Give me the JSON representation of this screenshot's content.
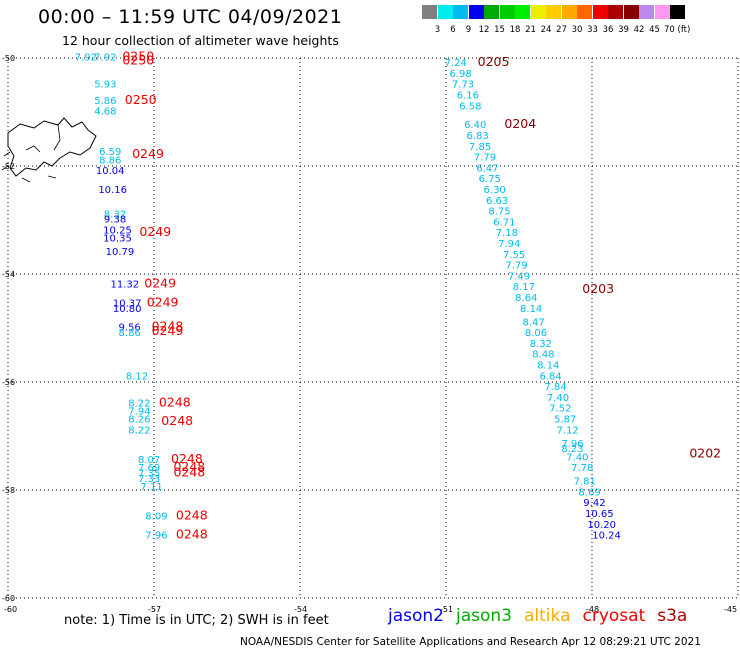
{
  "title": "00:00 – 11:59 UTC 04/09/2021",
  "subtitle": "12 hour collection of altimeter wave heights",
  "colorbar": {
    "labels": [
      "3",
      "6",
      "9",
      "12",
      "15",
      "18",
      "21",
      "24",
      "27",
      "30",
      "33",
      "36",
      "39",
      "42",
      "45",
      "70 (ft)"
    ],
    "colors": [
      "#808080",
      "#00eeee",
      "#00bbee",
      "#0000ee",
      "#00aa00",
      "#00cc00",
      "#00ee00",
      "#eeee00",
      "#ffcc00",
      "#ffaa00",
      "#ff6600",
      "#ee0000",
      "#aa0000",
      "#880000",
      "#bb88ee",
      "#ff99ee",
      "#000000"
    ]
  },
  "colors": {
    "swh_low": "#00bbee",
    "swh_mid": "#0000ee",
    "time_red": "#ee0000",
    "time_dark": "#880000"
  },
  "axes": {
    "lat_labels": [
      "-50",
      "-52",
      "-54",
      "-56",
      "-58",
      "-60"
    ],
    "lon_labels": [
      "-60",
      "-57",
      "-54",
      "-51",
      "-48",
      "-45"
    ]
  },
  "chart_data": {
    "type": "scatter",
    "x_axis": "longitude",
    "y_axis": "latitude",
    "xlim": [
      -60,
      -45
    ],
    "ylim": [
      -60,
      -50
    ],
    "units": "ft",
    "tracks": [
      {
        "color": "jason2",
        "points": [
          {
            "lon": -58.4,
            "lat": -50.05,
            "swh": "7.92"
          },
          {
            "lon": -58.0,
            "lat": -50.05,
            "swh": "7.92"
          },
          {
            "lon": -58.0,
            "lat": -50.55,
            "swh": "5.93"
          },
          {
            "lon": -58.0,
            "lat": -50.85,
            "swh": "5.86"
          },
          {
            "lon": -58.0,
            "lat": -51.05,
            "swh": "4.68"
          },
          {
            "lon": -57.9,
            "lat": -51.8,
            "swh": "6.59"
          },
          {
            "lon": -57.9,
            "lat": -51.95,
            "swh": "8.86"
          },
          {
            "lon": -57.9,
            "lat": -52.15,
            "swh": "10.04"
          },
          {
            "lon": -57.85,
            "lat": -52.5,
            "swh": "10.16"
          },
          {
            "lon": -57.8,
            "lat": -52.95,
            "swh": "8.32"
          },
          {
            "lon": -57.8,
            "lat": -53.05,
            "swh": "9.38"
          },
          {
            "lon": -57.75,
            "lat": -53.25,
            "swh": "10.25"
          },
          {
            "lon": -57.75,
            "lat": -53.4,
            "swh": "10.35"
          },
          {
            "lon": -57.7,
            "lat": -53.65,
            "swh": "10.79"
          },
          {
            "lon": -57.6,
            "lat": -54.25,
            "swh": "11.32"
          },
          {
            "lon": -57.55,
            "lat": -54.6,
            "swh": "10.37"
          },
          {
            "lon": -57.55,
            "lat": -54.7,
            "swh": "10.80"
          },
          {
            "lon": -57.5,
            "lat": -55.05,
            "swh": "9.56"
          },
          {
            "lon": -57.5,
            "lat": -55.15,
            "swh": "8.86"
          },
          {
            "lon": -57.35,
            "lat": -55.95,
            "swh": "8.12"
          },
          {
            "lon": -57.3,
            "lat": -56.45,
            "swh": "8.22"
          },
          {
            "lon": -57.3,
            "lat": -56.6,
            "swh": "7.94"
          },
          {
            "lon": -57.3,
            "lat": -56.75,
            "swh": "8.26"
          },
          {
            "lon": -57.3,
            "lat": -56.95,
            "swh": "8.22"
          },
          {
            "lon": -57.1,
            "lat": -57.5,
            "swh": "8.07"
          },
          {
            "lon": -57.1,
            "lat": -57.65,
            "swh": "7.69"
          },
          {
            "lon": -57.1,
            "lat": -57.75,
            "swh": "7.35"
          },
          {
            "lon": -57.1,
            "lat": -57.85,
            "swh": "7.33"
          },
          {
            "lon": -57.05,
            "lat": -58.0,
            "swh": "7.11"
          },
          {
            "lon": -56.95,
            "lat": -58.55,
            "swh": "8.09"
          },
          {
            "lon": -56.95,
            "lat": -58.9,
            "swh": "7.96"
          }
        ]
      },
      {
        "color": "jason2-east",
        "points": [
          {
            "lon": -50.8,
            "lat": -50.15,
            "swh": "7.24"
          },
          {
            "lon": -50.7,
            "lat": -50.35,
            "swh": "6.98"
          },
          {
            "lon": -50.65,
            "lat": -50.55,
            "swh": "7.73"
          },
          {
            "lon": -50.55,
            "lat": -50.75,
            "swh": "6.16"
          },
          {
            "lon": -50.5,
            "lat": -50.95,
            "swh": "6.58"
          },
          {
            "lon": -50.4,
            "lat": -51.3,
            "swh": "6.40"
          },
          {
            "lon": -50.35,
            "lat": -51.5,
            "swh": "6.83"
          },
          {
            "lon": -50.3,
            "lat": -51.7,
            "swh": "7.85"
          },
          {
            "lon": -50.2,
            "lat": -51.9,
            "swh": "7.79"
          },
          {
            "lon": -50.15,
            "lat": -52.1,
            "swh": "6.47"
          },
          {
            "lon": -50.1,
            "lat": -52.3,
            "swh": "6.75"
          },
          {
            "lon": -50.0,
            "lat": -52.5,
            "swh": "6.30"
          },
          {
            "lon": -49.95,
            "lat": -52.7,
            "swh": "6.63"
          },
          {
            "lon": -49.9,
            "lat": -52.9,
            "swh": "8.75"
          },
          {
            "lon": -49.8,
            "lat": -53.1,
            "swh": "6.71"
          },
          {
            "lon": -49.75,
            "lat": -53.3,
            "swh": "7.18"
          },
          {
            "lon": -49.7,
            "lat": -53.5,
            "swh": "7.94"
          },
          {
            "lon": -49.6,
            "lat": -53.7,
            "swh": "7.55"
          },
          {
            "lon": -49.55,
            "lat": -53.9,
            "swh": "7.79"
          },
          {
            "lon": -49.5,
            "lat": -54.1,
            "swh": "7.49"
          },
          {
            "lon": -49.4,
            "lat": -54.3,
            "swh": "8.17"
          },
          {
            "lon": -49.35,
            "lat": -54.5,
            "swh": "8.64"
          },
          {
            "lon": -49.25,
            "lat": -54.7,
            "swh": "8.14"
          },
          {
            "lon": -49.2,
            "lat": -54.95,
            "swh": "8.47"
          },
          {
            "lon": -49.15,
            "lat": -55.15,
            "swh": "8.06"
          },
          {
            "lon": -49.05,
            "lat": -55.35,
            "swh": "8.32"
          },
          {
            "lon": -49.0,
            "lat": -55.55,
            "swh": "8.48"
          },
          {
            "lon": -48.9,
            "lat": -55.75,
            "swh": "8.14"
          },
          {
            "lon": -48.85,
            "lat": -55.95,
            "swh": "6.84"
          },
          {
            "lon": -48.75,
            "lat": -56.15,
            "swh": "7.84"
          },
          {
            "lon": -48.7,
            "lat": -56.35,
            "swh": "7.40"
          },
          {
            "lon": -48.65,
            "lat": -56.55,
            "swh": "7.52"
          },
          {
            "lon": -48.55,
            "lat": -56.75,
            "swh": "5.87"
          },
          {
            "lon": -48.5,
            "lat": -56.95,
            "swh": "7.12"
          },
          {
            "lon": -48.4,
            "lat": -57.2,
            "swh": "7.96"
          },
          {
            "lon": -48.4,
            "lat": -57.3,
            "swh": "8.23"
          },
          {
            "lon": -48.3,
            "lat": -57.45,
            "swh": "7.40"
          },
          {
            "lon": -48.2,
            "lat": -57.65,
            "swh": "7.78"
          },
          {
            "lon": -48.15,
            "lat": -57.9,
            "swh": "7.81"
          },
          {
            "lon": -48.05,
            "lat": -58.1,
            "swh": "8.69"
          },
          {
            "lon": -47.95,
            "lat": -58.3,
            "swh": "9.42"
          },
          {
            "lon": -47.85,
            "lat": -58.5,
            "swh": "10.65"
          },
          {
            "lon": -47.8,
            "lat": -58.7,
            "swh": "10.20"
          },
          {
            "lon": -47.7,
            "lat": -58.9,
            "swh": "10.24"
          }
        ]
      }
    ],
    "time_labels": [
      {
        "lon": -57.65,
        "lat": -50.05,
        "text": "0250",
        "tone": "red"
      },
      {
        "lon": -57.65,
        "lat": -50.12,
        "text": "0250",
        "tone": "red"
      },
      {
        "lon": -57.6,
        "lat": -50.85,
        "text": "0250",
        "tone": "red"
      },
      {
        "lon": -57.45,
        "lat": -51.85,
        "text": "0249",
        "tone": "red"
      },
      {
        "lon": -57.3,
        "lat": -53.3,
        "text": "0249",
        "tone": "red"
      },
      {
        "lon": -57.2,
        "lat": -54.25,
        "text": "0249",
        "tone": "red"
      },
      {
        "lon": -57.15,
        "lat": -54.6,
        "text": "0249",
        "tone": "red"
      },
      {
        "lon": -57.05,
        "lat": -55.05,
        "text": "0248",
        "tone": "red"
      },
      {
        "lon": -57.05,
        "lat": -55.13,
        "text": "0249",
        "tone": "red"
      },
      {
        "lon": -56.9,
        "lat": -56.45,
        "text": "0248",
        "tone": "red"
      },
      {
        "lon": -56.85,
        "lat": -56.8,
        "text": "0248",
        "tone": "red"
      },
      {
        "lon": -56.65,
        "lat": -57.5,
        "text": "0248",
        "tone": "red"
      },
      {
        "lon": -56.6,
        "lat": -57.65,
        "text": "0248",
        "tone": "red"
      },
      {
        "lon": -56.6,
        "lat": -57.75,
        "text": "0248",
        "tone": "red"
      },
      {
        "lon": -56.55,
        "lat": -58.55,
        "text": "0248",
        "tone": "red"
      },
      {
        "lon": -56.55,
        "lat": -58.9,
        "text": "0248",
        "tone": "red"
      },
      {
        "lon": -50.35,
        "lat": -50.15,
        "text": "0205",
        "tone": "dark"
      },
      {
        "lon": -49.8,
        "lat": -51.3,
        "text": "0204",
        "tone": "dark"
      },
      {
        "lon": -48.2,
        "lat": -54.35,
        "text": "0203",
        "tone": "dark"
      },
      {
        "lon": -46.0,
        "lat": -57.4,
        "text": "0202",
        "tone": "dark"
      }
    ]
  },
  "note": "note:  1) Time is in UTC; 2) SWH is in feet",
  "legend": [
    {
      "label": "jason2",
      "color": "#0000ee"
    },
    {
      "label": "jason3",
      "color": "#00aa00"
    },
    {
      "label": "altika",
      "color": "#ffaa00"
    },
    {
      "label": "cryosat",
      "color": "#ee0000"
    },
    {
      "label": "s3a",
      "color": "#aa0000"
    }
  ],
  "credit": "NOAA/NESDIS Center for Satellite Applications and Research    Apr 12 08:29:21 UTC 2021"
}
